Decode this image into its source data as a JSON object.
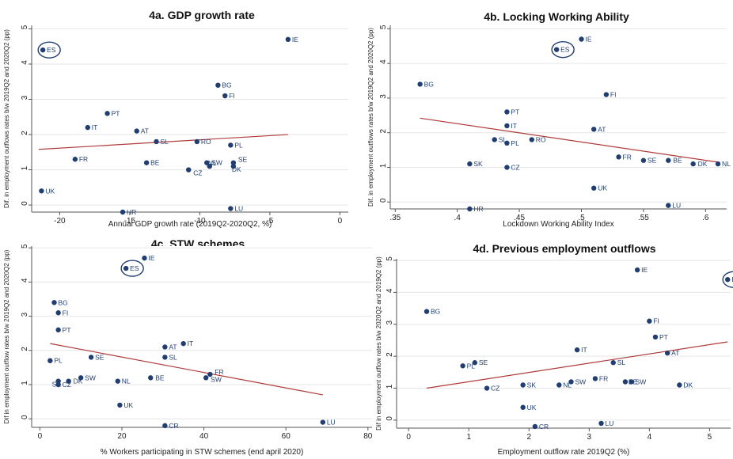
{
  "colors": {
    "point": "#1f3e74",
    "fit_line": "#b03a3a",
    "grid": "#e6e6e6",
    "axis": "#555555"
  },
  "chart_data": [
    {
      "id": "a",
      "type": "scatter",
      "title": "4a. GDP growth rate",
      "xlabel": "Annual GDP growth rate (2019Q2-2020Q2, %)",
      "ylabel": "Dif. in employment outflows rates b/w 2019Q2 and 2020Q2 (pp)",
      "xlim": [
        -22,
        0.6
      ],
      "ylim": [
        -0.2,
        5.1
      ],
      "xticks": [
        -20,
        -15,
        -10,
        -5,
        0
      ],
      "xtick_labels": [
        "-20",
        "-15",
        "-10",
        "-5",
        "0"
      ],
      "yticks": [
        0,
        1,
        2,
        3,
        4,
        5
      ],
      "ytick_labels": [
        "0",
        "1",
        "2",
        "3",
        "4",
        "5"
      ],
      "grid": true,
      "fit_line": [
        [
          -21.5,
          1.58
        ],
        [
          -3.7,
          2.0
        ]
      ],
      "highlight": "ES",
      "points": [
        {
          "label": "ES",
          "x": -21.2,
          "y": 4.4
        },
        {
          "label": "IE",
          "x": -3.7,
          "y": 4.7
        },
        {
          "label": "BG",
          "x": -8.7,
          "y": 3.4
        },
        {
          "label": "FI",
          "x": -8.2,
          "y": 3.1
        },
        {
          "label": "PT",
          "x": -16.6,
          "y": 2.6
        },
        {
          "label": "IT",
          "x": -18.0,
          "y": 2.2
        },
        {
          "label": "AT",
          "x": -14.5,
          "y": 2.1
        },
        {
          "label": "SL",
          "x": -13.1,
          "y": 1.8
        },
        {
          "label": "RO",
          "x": -10.2,
          "y": 1.8
        },
        {
          "label": "PL",
          "x": -7.8,
          "y": 1.7
        },
        {
          "label": "FR",
          "x": -18.9,
          "y": 1.3
        },
        {
          "label": "BE",
          "x": -13.8,
          "y": 1.2
        },
        {
          "label": "SW",
          "x": -9.5,
          "y": 1.2
        },
        {
          "label": "SE",
          "x": -7.6,
          "y": 1.2
        },
        {
          "label": "NL",
          "x": -9.3,
          "y": 1.1
        },
        {
          "label": "DK",
          "x": -7.6,
          "y": 1.1
        },
        {
          "label": "CZ",
          "x": -10.8,
          "y": 1.0
        },
        {
          "label": "UK",
          "x": -21.3,
          "y": 0.4
        },
        {
          "label": "LU",
          "x": -7.8,
          "y": -0.1
        },
        {
          "label": "HR",
          "x": -15.5,
          "y": -0.2
        }
      ]
    },
    {
      "id": "b",
      "type": "scatter",
      "title": "4b.  Locking Working Ability",
      "xlabel": "Lockdown Working Ability Index",
      "ylabel": "Dif. in employment outflows rates b/w 2019Q2 and 2020Q2 (pp)",
      "xlim": [
        0.346,
        0.617
      ],
      "ylim": [
        -0.2,
        5.1
      ],
      "xticks": [
        0.35,
        0.4,
        0.45,
        0.5,
        0.55,
        0.6
      ],
      "xtick_labels": [
        ".35",
        ".4",
        ".45",
        ".5",
        ".55",
        ".6"
      ],
      "yticks": [
        0,
        1,
        2,
        3,
        4,
        5
      ],
      "ytick_labels": [
        "0",
        "1",
        "2",
        "3",
        "4",
        "5"
      ],
      "grid": true,
      "fit_line": [
        [
          0.37,
          2.42
        ],
        [
          0.61,
          1.15
        ]
      ],
      "highlight": "ES",
      "points": [
        {
          "label": "IE",
          "x": 0.5,
          "y": 4.7
        },
        {
          "label": "ES",
          "x": 0.48,
          "y": 4.4
        },
        {
          "label": "BG",
          "x": 0.37,
          "y": 3.4
        },
        {
          "label": "FI",
          "x": 0.52,
          "y": 3.1
        },
        {
          "label": "PT",
          "x": 0.44,
          "y": 2.6
        },
        {
          "label": "IT",
          "x": 0.44,
          "y": 2.2
        },
        {
          "label": "AT",
          "x": 0.51,
          "y": 2.1
        },
        {
          "label": "SL",
          "x": 0.43,
          "y": 1.8
        },
        {
          "label": "RO",
          "x": 0.46,
          "y": 1.8
        },
        {
          "label": "PL",
          "x": 0.44,
          "y": 1.7
        },
        {
          "label": "FR",
          "x": 0.53,
          "y": 1.3
        },
        {
          "label": "SE",
          "x": 0.55,
          "y": 1.2
        },
        {
          "label": "BE",
          "x": 0.57,
          "y": 1.2
        },
        {
          "label": "DK",
          "x": 0.59,
          "y": 1.1
        },
        {
          "label": "NL",
          "x": 0.61,
          "y": 1.1
        },
        {
          "label": "SK",
          "x": 0.41,
          "y": 1.1
        },
        {
          "label": "CZ",
          "x": 0.44,
          "y": 1.0
        },
        {
          "label": "UK",
          "x": 0.51,
          "y": 0.4
        },
        {
          "label": "LU",
          "x": 0.57,
          "y": -0.1
        },
        {
          "label": "HR",
          "x": 0.41,
          "y": -0.2
        }
      ]
    },
    {
      "id": "c",
      "type": "scatter",
      "title": "4c.  STW schemes",
      "xlabel": "% Workers participating in STW schemes (end april 2020)",
      "ylabel": "Dif in employment outflow rates b/w 2019Q2 and 2020Q2 (pp)",
      "xlim": [
        -2,
        81
      ],
      "ylim": [
        -0.25,
        5.05
      ],
      "xticks": [
        0,
        20,
        40,
        60,
        80
      ],
      "xtick_labels": [
        "0",
        "20",
        "40",
        "60",
        "80"
      ],
      "yticks": [
        0,
        1,
        2,
        3,
        4,
        5
      ],
      "ytick_labels": [
        "0",
        "1",
        "2",
        "3",
        "4",
        "5"
      ],
      "grid": true,
      "fit_line": [
        [
          2.5,
          2.2
        ],
        [
          69,
          0.7
        ]
      ],
      "highlight": "ES",
      "points": [
        {
          "label": "IE",
          "x": 25.5,
          "y": 4.7
        },
        {
          "label": "ES",
          "x": 21.0,
          "y": 4.4
        },
        {
          "label": "BG",
          "x": 3.5,
          "y": 3.4
        },
        {
          "label": "FI",
          "x": 4.5,
          "y": 3.1
        },
        {
          "label": "PT",
          "x": 4.5,
          "y": 2.6
        },
        {
          "label": "IT",
          "x": 35.0,
          "y": 2.2
        },
        {
          "label": "AT",
          "x": 30.5,
          "y": 2.1
        },
        {
          "label": "SL",
          "x": 30.5,
          "y": 1.8
        },
        {
          "label": "SE",
          "x": 12.5,
          "y": 1.8
        },
        {
          "label": "PL",
          "x": 2.5,
          "y": 1.7
        },
        {
          "label": "FR",
          "x": 41.5,
          "y": 1.3
        },
        {
          "label": "SW",
          "x": 40.5,
          "y": 1.2
        },
        {
          "label": "BE",
          "x": 27.0,
          "y": 1.2
        },
        {
          "label": "SW",
          "x": 10.0,
          "y": 1.2
        },
        {
          "label": "NL",
          "x": 19.0,
          "y": 1.1
        },
        {
          "label": "DK",
          "x": 7.0,
          "y": 1.1
        },
        {
          "label": "SK",
          "x": 4.5,
          "y": 1.1
        },
        {
          "label": "CZ",
          "x": 4.5,
          "y": 1.0
        },
        {
          "label": "UK",
          "x": 19.5,
          "y": 0.4
        },
        {
          "label": "CR",
          "x": 30.5,
          "y": -0.2
        },
        {
          "label": "LU",
          "x": 69.0,
          "y": -0.1
        }
      ]
    },
    {
      "id": "d",
      "type": "scatter",
      "title": "4d.  Previous employment outflows",
      "xlabel": "Employment outflow rate 2019Q2 (%)",
      "ylabel": "Dif in employment outflow rates b/w 2020Q2 and 2019Q2 (pp)",
      "xlim": [
        -0.2,
        5.35
      ],
      "ylim": [
        -0.25,
        5.05
      ],
      "xticks": [
        0,
        1,
        2,
        3,
        4,
        5
      ],
      "xtick_labels": [
        "0",
        "1",
        "2",
        "3",
        "4",
        "5"
      ],
      "yticks": [
        0,
        1,
        2,
        3,
        4,
        5
      ],
      "ytick_labels": [
        "0",
        "1",
        "2",
        "3",
        "4",
        "5"
      ],
      "grid": true,
      "fit_line": [
        [
          0.3,
          1.0
        ],
        [
          5.3,
          2.45
        ]
      ],
      "highlight": "ES",
      "points": [
        {
          "label": "IE",
          "x": 3.8,
          "y": 4.7
        },
        {
          "label": "ES",
          "x": 5.3,
          "y": 4.4
        },
        {
          "label": "BG",
          "x": 0.3,
          "y": 3.4
        },
        {
          "label": "FI",
          "x": 4.0,
          "y": 3.1
        },
        {
          "label": "PT",
          "x": 4.1,
          "y": 2.6
        },
        {
          "label": "IT",
          "x": 2.8,
          "y": 2.2
        },
        {
          "label": "AT",
          "x": 4.3,
          "y": 2.1
        },
        {
          "label": "SL",
          "x": 3.4,
          "y": 1.8
        },
        {
          "label": "SE",
          "x": 1.1,
          "y": 1.8
        },
        {
          "label": "PL",
          "x": 0.9,
          "y": 1.7
        },
        {
          "label": "FR",
          "x": 3.1,
          "y": 1.3
        },
        {
          "label": "SW",
          "x": 2.7,
          "y": 1.2
        },
        {
          "label": "BE",
          "x": 3.6,
          "y": 1.2
        },
        {
          "label": "SW",
          "x": 3.7,
          "y": 1.2
        },
        {
          "label": "NL",
          "x": 2.5,
          "y": 1.1
        },
        {
          "label": "DK",
          "x": 4.5,
          "y": 1.1
        },
        {
          "label": "SK",
          "x": 1.9,
          "y": 1.1
        },
        {
          "label": "CZ",
          "x": 1.3,
          "y": 1.0
        },
        {
          "label": "UK",
          "x": 1.9,
          "y": 0.4
        },
        {
          "label": "LU",
          "x": 3.2,
          "y": -0.1
        },
        {
          "label": "CR",
          "x": 2.1,
          "y": -0.2
        }
      ]
    }
  ]
}
